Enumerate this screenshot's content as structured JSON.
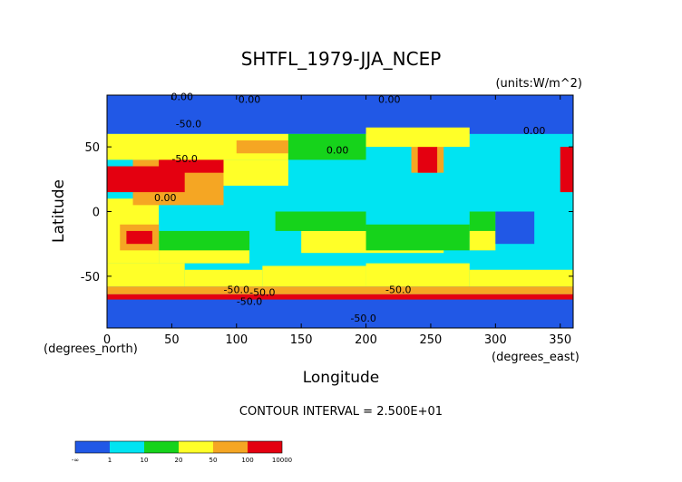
{
  "chart_data": {
    "type": "heatmap",
    "title": "SHTFL_1979-JJA_NCEP",
    "units_label": "(units:W/m^2)",
    "xlabel": "Longitude",
    "ylabel": "Latitude",
    "x_unit_label": "(degrees_east)",
    "y_unit_label": "(degrees_north)",
    "xlim": [
      0,
      360
    ],
    "ylim": [
      -90,
      90
    ],
    "x_ticks": [
      0,
      50,
      100,
      150,
      200,
      250,
      300,
      350
    ],
    "y_ticks": [
      -50,
      0,
      50
    ],
    "contour_interval_text": "CONTOUR INTERVAL = 2.500E+01",
    "contour_labels": [
      {
        "text": "0.00",
        "x": 58,
        "y": 86
      },
      {
        "text": "0.00",
        "x": 110,
        "y": 84
      },
      {
        "text": "0.00",
        "x": 218,
        "y": 84
      },
      {
        "text": "0.00",
        "x": 330,
        "y": 60
      },
      {
        "text": "-50.0",
        "x": 63,
        "y": 65
      },
      {
        "text": "-50.0",
        "x": 60,
        "y": 38
      },
      {
        "text": "0.00",
        "x": 178,
        "y": 45
      },
      {
        "text": "0.00",
        "x": 45,
        "y": 8
      },
      {
        "text": "-50.0",
        "x": 100,
        "y": -63
      },
      {
        "text": "-50.0",
        "x": 120,
        "y": -65
      },
      {
        "text": "-50.0",
        "x": 225,
        "y": -63
      },
      {
        "text": "-50.0",
        "x": 110,
        "y": -72
      },
      {
        "text": "-50.0",
        "x": 198,
        "y": -85
      }
    ],
    "legend": {
      "bounds_labels": [
        "-∞",
        "1",
        "10",
        "20",
        "50",
        "100",
        "10000"
      ],
      "colors": [
        "#2158e6",
        "#00e4f2",
        "#16d31b",
        "#ffff28",
        "#f5a623",
        "#e40010"
      ]
    },
    "regions": [
      {
        "lon": [
          0,
          360
        ],
        "lat": [
          -90,
          90
        ],
        "bin": 1
      },
      {
        "lon": [
          0,
          360
        ],
        "lat": [
          -90,
          -58
        ],
        "bin": 0
      },
      {
        "lon": [
          0,
          360
        ],
        "lat": [
          60,
          90
        ],
        "bin": 0
      },
      {
        "lon": [
          0,
          60
        ],
        "lat": [
          -58,
          -40
        ],
        "bin": 3
      },
      {
        "lon": [
          60,
          120
        ],
        "lat": [
          -58,
          -45
        ],
        "bin": 3
      },
      {
        "lon": [
          120,
          200
        ],
        "lat": [
          -58,
          -42
        ],
        "bin": 3
      },
      {
        "lon": [
          200,
          280
        ],
        "lat": [
          -58,
          -40
        ],
        "bin": 3
      },
      {
        "lon": [
          280,
          360
        ],
        "lat": [
          -58,
          -45
        ],
        "bin": 3
      },
      {
        "lon": [
          0,
          360
        ],
        "lat": [
          -64,
          -58
        ],
        "bin": 4
      },
      {
        "lon": [
          0,
          360
        ],
        "lat": [
          -68,
          -64
        ],
        "bin": 5
      },
      {
        "lon": [
          40,
          110
        ],
        "lat": [
          -40,
          -25
        ],
        "bin": 3
      },
      {
        "lon": [
          150,
          260
        ],
        "lat": [
          -32,
          -15
        ],
        "bin": 3
      },
      {
        "lon": [
          200,
          280
        ],
        "lat": [
          -30,
          -10
        ],
        "bin": 2
      },
      {
        "lon": [
          40,
          110
        ],
        "lat": [
          -30,
          -15
        ],
        "bin": 2
      },
      {
        "lon": [
          130,
          200
        ],
        "lat": [
          -15,
          0
        ],
        "bin": 2
      },
      {
        "lon": [
          0,
          40
        ],
        "lat": [
          -40,
          10
        ],
        "bin": 3
      },
      {
        "lon": [
          10,
          40
        ],
        "lat": [
          -30,
          -10
        ],
        "bin": 4
      },
      {
        "lon": [
          15,
          35
        ],
        "lat": [
          -25,
          -15
        ],
        "bin": 5
      },
      {
        "lon": [
          20,
          90
        ],
        "lat": [
          5,
          40
        ],
        "bin": 4
      },
      {
        "lon": [
          0,
          60
        ],
        "lat": [
          15,
          35
        ],
        "bin": 5
      },
      {
        "lon": [
          40,
          90
        ],
        "lat": [
          30,
          55
        ],
        "bin": 5
      },
      {
        "lon": [
          90,
          140
        ],
        "lat": [
          20,
          40
        ],
        "bin": 3
      },
      {
        "lon": [
          0,
          140
        ],
        "lat": [
          40,
          60
        ],
        "bin": 3
      },
      {
        "lon": [
          100,
          140
        ],
        "lat": [
          45,
          55
        ],
        "bin": 4
      },
      {
        "lon": [
          140,
          200
        ],
        "lat": [
          40,
          60
        ],
        "bin": 2
      },
      {
        "lon": [
          235,
          260
        ],
        "lat": [
          30,
          55
        ],
        "bin": 4
      },
      {
        "lon": [
          240,
          255
        ],
        "lat": [
          30,
          50
        ],
        "bin": 5
      },
      {
        "lon": [
          200,
          280
        ],
        "lat": [
          50,
          65
        ],
        "bin": 3
      },
      {
        "lon": [
          280,
          320
        ],
        "lat": [
          10,
          40
        ],
        "bin": 1
      },
      {
        "lon": [
          280,
          300
        ],
        "lat": [
          -20,
          0
        ],
        "bin": 2
      },
      {
        "lon": [
          280,
          300
        ],
        "lat": [
          -30,
          -15
        ],
        "bin": 3
      },
      {
        "lon": [
          300,
          330
        ],
        "lat": [
          -25,
          0
        ],
        "bin": 0
      },
      {
        "lon": [
          350,
          360
        ],
        "lat": [
          15,
          50
        ],
        "bin": 5
      }
    ]
  }
}
